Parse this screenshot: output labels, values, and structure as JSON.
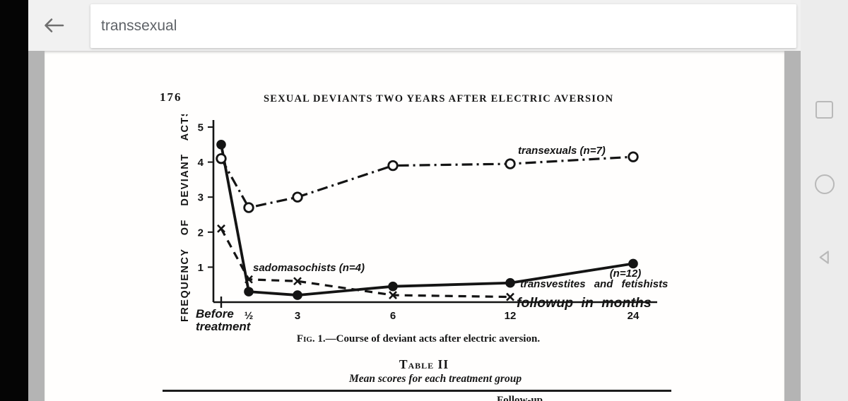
{
  "app": {
    "search_query": "transsexual"
  },
  "icons": {
    "toolbar_back": "arrow-left",
    "nav_recents": "square-outline",
    "nav_home": "circle-outline",
    "nav_back": "triangle-left-outline"
  },
  "colors": {
    "ink": "#141414",
    "toolbar_bg": "#f1f1f1",
    "nav_bg": "#ececec",
    "page_edge_gray": "#b4b4b4",
    "icon_gray": "#b9b9b9",
    "search_text": "#5f6368"
  },
  "document": {
    "page_number": "176",
    "running_head": "SEXUAL DEVIANTS TWO YEARS AFTER ELECTRIC AVERSION",
    "figure_caption_prefix": "Fig. 1.",
    "figure_caption_text": "—Course of deviant acts after electric aversion.",
    "table_label": "Table II",
    "table_subtitle": "Mean scores for each treatment group",
    "table_partial_column_header": "Follow-up"
  },
  "chart_data": {
    "type": "line",
    "title": "Fig. 1. Course of deviant acts after electric aversion",
    "ylabel": "FREQUENCY OF DEVIANT ACTS",
    "xlabel": "followup in months",
    "x_categories": [
      "Before treatment",
      "½",
      "3",
      "6",
      "12",
      "24"
    ],
    "before_label_lines": [
      "Before",
      "treatment"
    ],
    "x_tick_labels": [
      "½",
      "3",
      "6",
      "12",
      "24"
    ],
    "y_ticks": [
      5,
      4,
      3,
      2,
      1
    ],
    "ylim": [
      0,
      5.2
    ],
    "grid": false,
    "legend_position": "inline-annotations",
    "series": [
      {
        "name": "transexuals",
        "n": 7,
        "label": "transexuals (n=7)",
        "marker": "open-circle",
        "line_style": "dash-dot",
        "values": [
          4.1,
          2.7,
          3.0,
          3.9,
          3.95,
          4.15
        ]
      },
      {
        "name": "transvestites and fetishists",
        "n": 12,
        "label": "transvestites and fetishists",
        "n_label": "(n=12)",
        "marker": "filled-circle",
        "line_style": "solid",
        "values": [
          4.5,
          0.3,
          0.2,
          0.45,
          0.55,
          1.1
        ]
      },
      {
        "name": "sadomasochists",
        "n": 4,
        "label": "sadomasochists (n=4)",
        "marker": "x",
        "line_style": "dashed",
        "values": [
          2.1,
          0.65,
          0.6,
          0.2,
          0.15,
          null
        ]
      }
    ]
  }
}
